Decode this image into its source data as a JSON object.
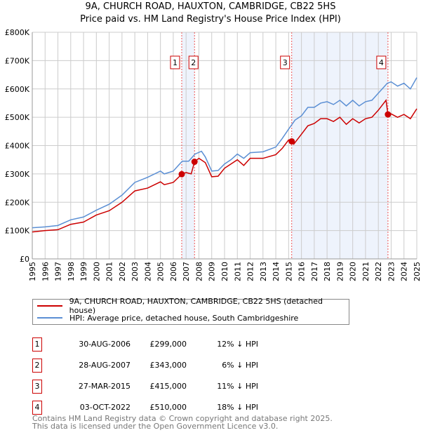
{
  "chart_data": {
    "type": "line",
    "title": "9A, CHURCH ROAD, HAUXTON, CAMBRIDGE, CB22 5HS",
    "subtitle": "Price paid vs. HM Land Registry's House Price Index (HPI)",
    "xlim": [
      1995,
      2025
    ],
    "ylim": [
      0,
      800000
    ],
    "yticks": [
      {
        "v": 0,
        "l": "£0"
      },
      {
        "v": 100000,
        "l": "£100K"
      },
      {
        "v": 200000,
        "l": "£200K"
      },
      {
        "v": 300000,
        "l": "£300K"
      },
      {
        "v": 400000,
        "l": "£400K"
      },
      {
        "v": 500000,
        "l": "£500K"
      },
      {
        "v": 600000,
        "l": "£600K"
      },
      {
        "v": 700000,
        "l": "£700K"
      },
      {
        "v": 800000,
        "l": "£800K"
      }
    ],
    "xticks": [
      "1995",
      "1996",
      "1997",
      "1998",
      "1999",
      "2000",
      "2001",
      "2002",
      "2003",
      "2004",
      "2005",
      "2006",
      "2007",
      "2008",
      "2009",
      "2010",
      "2011",
      "2012",
      "2013",
      "2014",
      "2015",
      "2016",
      "2017",
      "2018",
      "2019",
      "2020",
      "2021",
      "2022",
      "2023",
      "2024",
      "2025"
    ],
    "series": [
      {
        "name": "9A, CHURCH ROAD, HAUXTON, CAMBRIDGE, CB22 5HS (detached house)",
        "color": "#cc0000",
        "points": [
          [
            1995,
            95
          ],
          [
            1996,
            100
          ],
          [
            1997,
            103
          ],
          [
            1998,
            122
          ],
          [
            1999,
            130
          ],
          [
            2000,
            155
          ],
          [
            2001,
            170
          ],
          [
            2002,
            200
          ],
          [
            2003,
            240
          ],
          [
            2004,
            250
          ],
          [
            2005,
            272
          ],
          [
            2005.3,
            262
          ],
          [
            2006,
            270
          ],
          [
            2006.66,
            299
          ],
          [
            2007,
            305
          ],
          [
            2007.4,
            300
          ],
          [
            2007.66,
            343
          ],
          [
            2008,
            355
          ],
          [
            2008.5,
            340
          ],
          [
            2009,
            290
          ],
          [
            2009.5,
            292
          ],
          [
            2010,
            320
          ],
          [
            2010.5,
            335
          ],
          [
            2011,
            350
          ],
          [
            2011.5,
            330
          ],
          [
            2012,
            355
          ],
          [
            2013,
            355
          ],
          [
            2014,
            368
          ],
          [
            2014.5,
            390
          ],
          [
            2015,
            420
          ],
          [
            2015.24,
            415
          ],
          [
            2015.4,
            405
          ],
          [
            2016,
            440
          ],
          [
            2016.5,
            470
          ],
          [
            2017,
            478
          ],
          [
            2017.5,
            495
          ],
          [
            2018,
            495
          ],
          [
            2018.5,
            485
          ],
          [
            2019,
            500
          ],
          [
            2019.5,
            475
          ],
          [
            2020,
            495
          ],
          [
            2020.5,
            480
          ],
          [
            2021,
            495
          ],
          [
            2021.5,
            500
          ],
          [
            2022,
            525
          ],
          [
            2022.6,
            560
          ],
          [
            2022.75,
            510
          ],
          [
            2023,
            512
          ],
          [
            2023.5,
            500
          ],
          [
            2024,
            510
          ],
          [
            2024.5,
            495
          ],
          [
            2025,
            530
          ]
        ]
      },
      {
        "name": "HPI: Average price, detached house, South Cambridgeshire",
        "color": "#5b8fd4",
        "points": [
          [
            1995,
            110
          ],
          [
            1996,
            113
          ],
          [
            1997,
            118
          ],
          [
            1998,
            138
          ],
          [
            1999,
            148
          ],
          [
            2000,
            172
          ],
          [
            2001,
            193
          ],
          [
            2002,
            225
          ],
          [
            2003,
            270
          ],
          [
            2004,
            288
          ],
          [
            2005,
            310
          ],
          [
            2005.3,
            300
          ],
          [
            2006,
            310
          ],
          [
            2006.7,
            345
          ],
          [
            2007.2,
            345
          ],
          [
            2007.7,
            370
          ],
          [
            2008.2,
            380
          ],
          [
            2008.5,
            360
          ],
          [
            2009,
            310
          ],
          [
            2009.5,
            312
          ],
          [
            2010,
            335
          ],
          [
            2010.5,
            350
          ],
          [
            2011,
            370
          ],
          [
            2011.5,
            355
          ],
          [
            2012,
            375
          ],
          [
            2013,
            378
          ],
          [
            2014,
            395
          ],
          [
            2014.5,
            425
          ],
          [
            2015,
            458
          ],
          [
            2015.5,
            490
          ],
          [
            2016,
            505
          ],
          [
            2016.5,
            535
          ],
          [
            2017,
            535
          ],
          [
            2017.5,
            550
          ],
          [
            2018,
            555
          ],
          [
            2018.5,
            545
          ],
          [
            2019,
            560
          ],
          [
            2019.5,
            540
          ],
          [
            2020,
            560
          ],
          [
            2020.5,
            540
          ],
          [
            2021,
            555
          ],
          [
            2021.5,
            560
          ],
          [
            2022,
            585
          ],
          [
            2022.7,
            620
          ],
          [
            2023,
            625
          ],
          [
            2023.5,
            610
          ],
          [
            2024,
            620
          ],
          [
            2024.5,
            600
          ],
          [
            2025,
            640
          ]
        ]
      }
    ],
    "sales": [
      {
        "n": "1",
        "x": 2006.66,
        "price": 299000,
        "date": "30-AUG-2006",
        "price_label": "£299,000",
        "hpi": "12% ↓ HPI"
      },
      {
        "n": "2",
        "x": 2007.66,
        "price": 343000,
        "date": "28-AUG-2007",
        "price_label": "£343,000",
        "hpi": "6% ↓ HPI"
      },
      {
        "n": "3",
        "x": 2015.24,
        "price": 415000,
        "date": "27-MAR-2015",
        "price_label": "£415,000",
        "hpi": "11% ↓ HPI"
      },
      {
        "n": "4",
        "x": 2022.75,
        "price": 510000,
        "date": "03-OCT-2022",
        "price_label": "£510,000",
        "hpi": "18% ↓ HPI"
      }
    ],
    "shaded_ranges": [
      [
        2006.66,
        2007.66
      ],
      [
        2015.24,
        2022.75
      ]
    ]
  },
  "footer": {
    "line1": "Contains HM Land Registry data © Crown copyright and database right 2025.",
    "line2": "This data is licensed under the Open Government Licence v3.0."
  }
}
